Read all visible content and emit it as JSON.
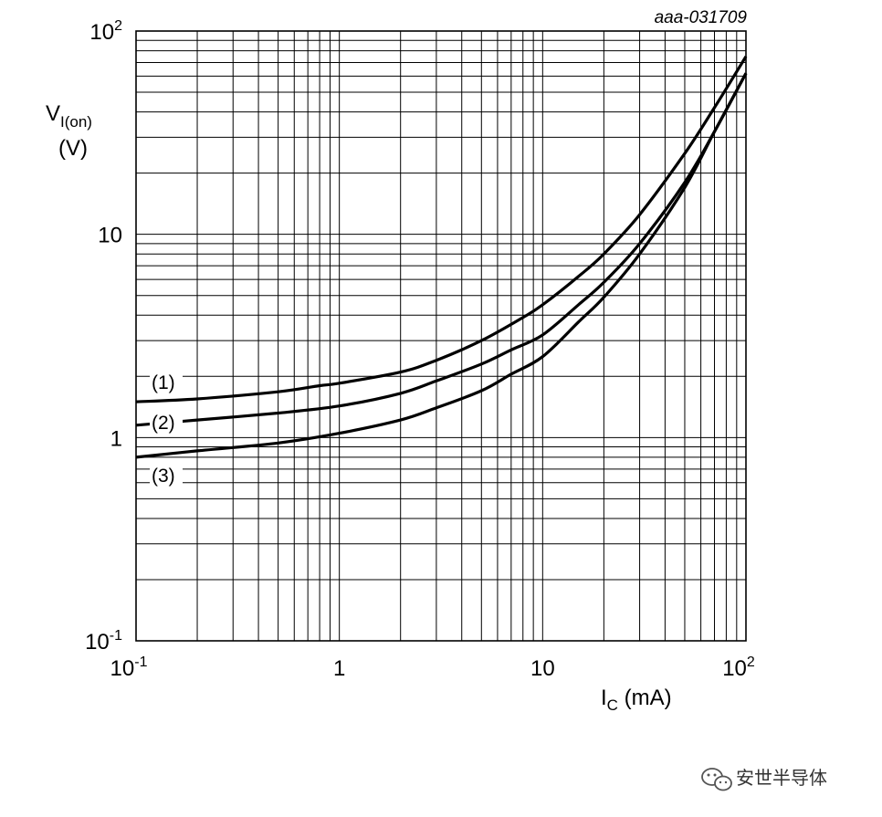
{
  "chart_data": {
    "type": "line",
    "figure_code": "aaa-031709",
    "xlabel": {
      "main": "I",
      "sub": "C",
      "rest": " (mA)"
    },
    "ylabel": {
      "main": "V",
      "sub": "I(on)",
      "unit": "(V)"
    },
    "x_scale": "log",
    "y_scale": "log",
    "xlim": [
      0.1,
      100
    ],
    "ylim": [
      0.1,
      100
    ],
    "grid": true,
    "x_ticks": [
      {
        "value": 0.1,
        "base": "10",
        "exp": "-1"
      },
      {
        "value": 1,
        "base": "1",
        "exp": ""
      },
      {
        "value": 10,
        "base": "10",
        "exp": ""
      },
      {
        "value": 100,
        "base": "10",
        "exp": "2"
      }
    ],
    "y_ticks": [
      {
        "value": 0.1,
        "base": "10",
        "exp": "-1"
      },
      {
        "value": 1,
        "base": "1",
        "exp": ""
      },
      {
        "value": 10,
        "base": "10",
        "exp": ""
      },
      {
        "value": 100,
        "base": "10",
        "exp": "2"
      }
    ],
    "series": [
      {
        "name": "(1)",
        "x": [
          0.1,
          0.2,
          0.5,
          0.8,
          1,
          2,
          3,
          5,
          8,
          10,
          15,
          20,
          30,
          50,
          70,
          100
        ],
        "y": [
          1.5,
          1.55,
          1.68,
          1.8,
          1.85,
          2.1,
          2.4,
          3.0,
          3.9,
          4.5,
          6.2,
          8.0,
          12.5,
          25,
          42,
          75
        ]
      },
      {
        "name": "(2)",
        "x": [
          0.1,
          0.2,
          0.5,
          1,
          2,
          3,
          5,
          7,
          10,
          15,
          20,
          30,
          50,
          70,
          100
        ],
        "y": [
          1.15,
          1.22,
          1.32,
          1.43,
          1.65,
          1.9,
          2.3,
          2.7,
          3.2,
          4.5,
          5.8,
          9.0,
          18,
          32,
          62
        ]
      },
      {
        "name": "(3)",
        "x": [
          0.1,
          0.2,
          0.5,
          1,
          2,
          3,
          5,
          7,
          10,
          15,
          20,
          30,
          50,
          70,
          100
        ],
        "y": [
          0.8,
          0.86,
          0.94,
          1.05,
          1.22,
          1.4,
          1.7,
          2.05,
          2.5,
          3.7,
          4.9,
          8.0,
          17,
          32,
          62
        ]
      }
    ]
  },
  "watermark": {
    "icon": "wechat-icon",
    "text": "安世半导体"
  }
}
